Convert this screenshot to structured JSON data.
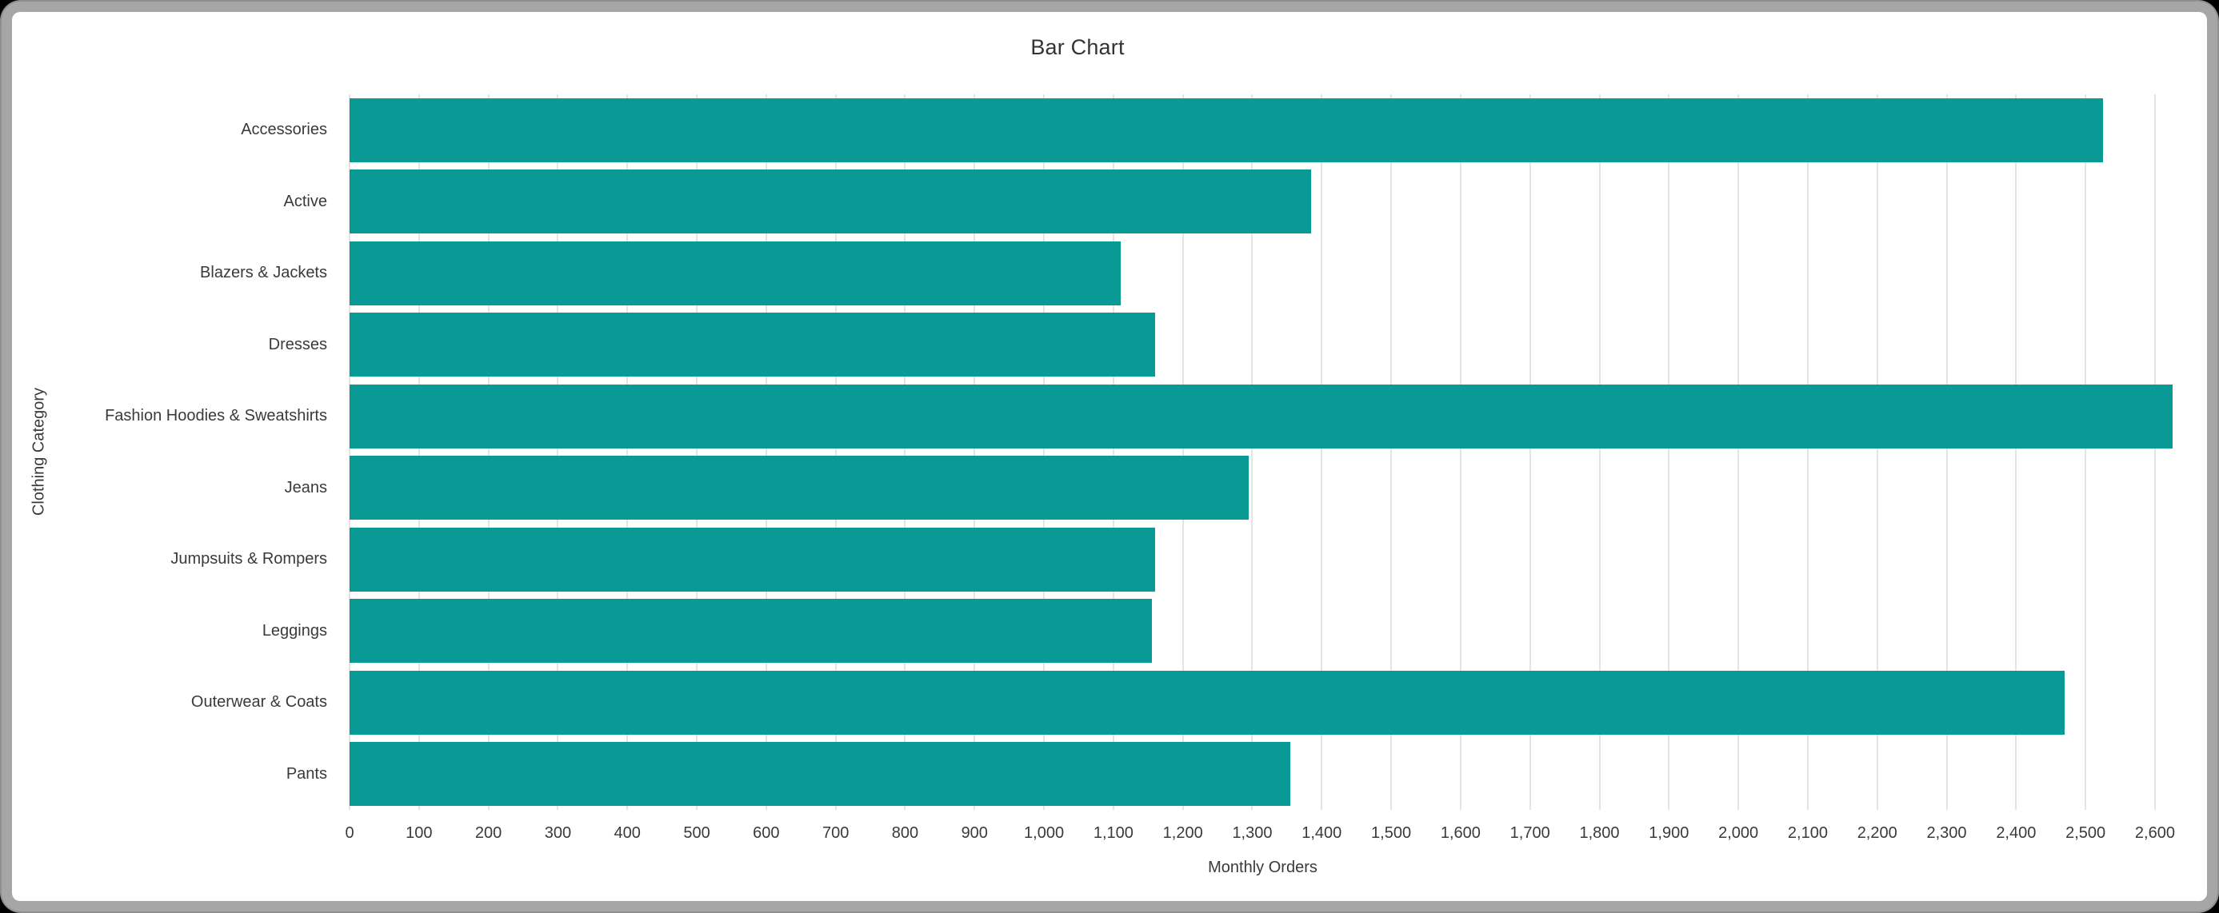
{
  "window": {
    "frame_color": "#a6a6a6",
    "frame_edge_color": "#8f8f8f",
    "background": "#ffffff"
  },
  "chart_data": {
    "type": "bar",
    "orientation": "horizontal",
    "title": "Bar Chart",
    "xlabel": "Monthly Orders",
    "ylabel": "Clothing Category",
    "categories": [
      "Accessories",
      "Active",
      "Blazers & Jackets",
      "Dresses",
      "Fashion Hoodies & Sweatshirts",
      "Jeans",
      "Jumpsuits & Rompers",
      "Leggings",
      "Outerwear & Coats",
      "Pants"
    ],
    "values": [
      2525,
      1385,
      1110,
      1160,
      2625,
      1295,
      1160,
      1155,
      2470,
      1355
    ],
    "xlim": [
      0,
      2630
    ],
    "x_tick_step": 100,
    "x_tick_labels": [
      "0",
      "100",
      "200",
      "300",
      "400",
      "500",
      "600",
      "700",
      "800",
      "900",
      "1,000",
      "1,100",
      "1,200",
      "1,300",
      "1,400",
      "1,500",
      "1,600",
      "1,700",
      "1,800",
      "1,900",
      "2,000",
      "2,100",
      "2,200",
      "2,300",
      "2,400",
      "2,500",
      "2,600"
    ],
    "bar_color": "#0a9a96",
    "grid": true,
    "gridline_color": "#e4e4e4",
    "legend_position": "none"
  }
}
